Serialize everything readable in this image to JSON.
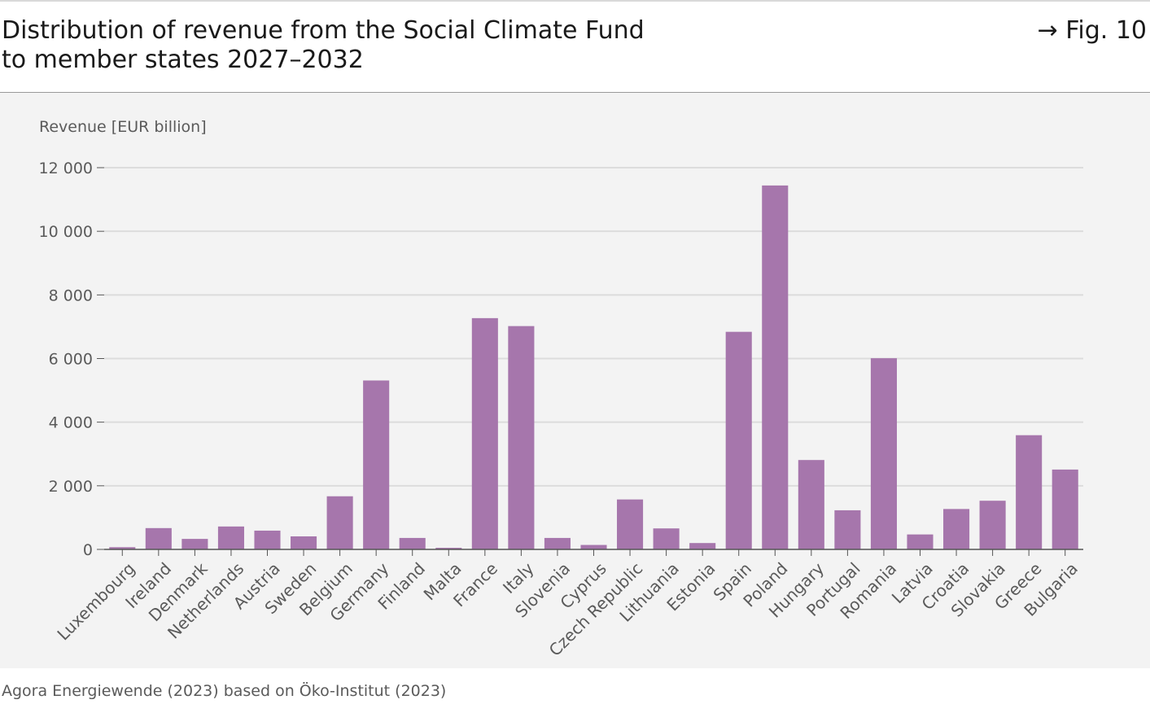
{
  "header": {
    "title_line1": "Distribution of revenue from the Social Climate Fund",
    "title_line2": "to member states 2027–2032",
    "figure_ref": "→ Fig. 10"
  },
  "footer": {
    "source": "Agora Energiewende (2023) based on Öko-Institut (2023)"
  },
  "colors": {
    "bar": "#a676ac",
    "grid": "#dcdcdc",
    "axis": "#555555",
    "panel": "#f3f3f3"
  },
  "chart_data": {
    "type": "bar",
    "title": "Distribution of revenue from the Social Climate Fund to member states 2027–2032",
    "ylabel": "Revenue [EUR billion]",
    "xlabel": "",
    "ylim": [
      0,
      12000
    ],
    "yticks": [
      0,
      2000,
      4000,
      6000,
      8000,
      10000,
      12000
    ],
    "ytick_labels": [
      "0",
      "2 000",
      "4 000",
      "6 000",
      "8 000",
      "10 000",
      "12 000"
    ],
    "grid": true,
    "categories": [
      "Luxembourg",
      "Ireland",
      "Denmark",
      "Netherlands",
      "Austria",
      "Sweden",
      "Belgium",
      "Germany",
      "Finland",
      "Malta",
      "France",
      "Italy",
      "Slovenia",
      "Cyprus",
      "Czech Republic",
      "Lithuania",
      "Estonia",
      "Spain",
      "Poland",
      "Hungary",
      "Portugal",
      "Romania",
      "Latvia",
      "Croatia",
      "Slovakia",
      "Greece",
      "Bulgaria"
    ],
    "values": [
      70,
      670,
      330,
      720,
      590,
      410,
      1670,
      5310,
      360,
      50,
      7270,
      7020,
      360,
      140,
      1570,
      660,
      200,
      6840,
      11440,
      2810,
      1230,
      6010,
      470,
      1270,
      1530,
      3590,
      2510
    ]
  }
}
